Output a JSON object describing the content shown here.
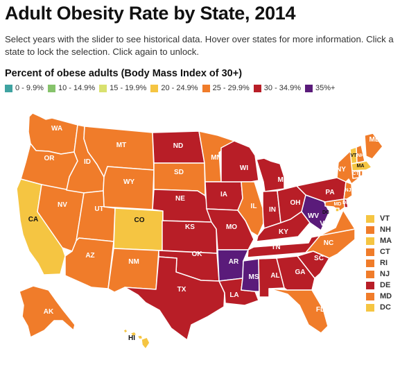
{
  "title": "Adult Obesity Rate by State, 2014",
  "subtitle": "Select years with the slider to see historical data. Hover over states for more information. Click a state to lock the selection. Click again to unlock.",
  "legend": {
    "heading": "Percent of obese adults (Body Mass Index of 30+)",
    "items": [
      {
        "label": "0 - 9.9%",
        "color": "#3fa3a1"
      },
      {
        "label": "10 - 14.9%",
        "color": "#86c36b"
      },
      {
        "label": "15 - 19.9%",
        "color": "#d9e16f"
      },
      {
        "label": "20 - 24.9%",
        "color": "#f5c542"
      },
      {
        "label": "25 - 29.9%",
        "color": "#f07c2a"
      },
      {
        "label": "30 - 34.9%",
        "color": "#b81e27"
      },
      {
        "label": "35%+",
        "color": "#5a1b7a"
      }
    ]
  },
  "map": {
    "states": [
      {
        "abbr": "WA",
        "range": "25 - 29.9%"
      },
      {
        "abbr": "OR",
        "range": "25 - 29.9%"
      },
      {
        "abbr": "CA",
        "range": "20 - 24.9%"
      },
      {
        "abbr": "NV",
        "range": "25 - 29.9%"
      },
      {
        "abbr": "ID",
        "range": "25 - 29.9%"
      },
      {
        "abbr": "MT",
        "range": "25 - 29.9%"
      },
      {
        "abbr": "WY",
        "range": "25 - 29.9%"
      },
      {
        "abbr": "UT",
        "range": "25 - 29.9%"
      },
      {
        "abbr": "AZ",
        "range": "25 - 29.9%"
      },
      {
        "abbr": "CO",
        "range": "20 - 24.9%"
      },
      {
        "abbr": "NM",
        "range": "25 - 29.9%"
      },
      {
        "abbr": "ND",
        "range": "30 - 34.9%"
      },
      {
        "abbr": "SD",
        "range": "25 - 29.9%"
      },
      {
        "abbr": "NE",
        "range": "30 - 34.9%"
      },
      {
        "abbr": "KS",
        "range": "30 - 34.9%"
      },
      {
        "abbr": "OK",
        "range": "30 - 34.9%"
      },
      {
        "abbr": "TX",
        "range": "30 - 34.9%"
      },
      {
        "abbr": "MN",
        "range": "25 - 29.9%"
      },
      {
        "abbr": "IA",
        "range": "30 - 34.9%"
      },
      {
        "abbr": "MO",
        "range": "30 - 34.9%"
      },
      {
        "abbr": "AR",
        "range": "35%+"
      },
      {
        "abbr": "LA",
        "range": "30 - 34.9%"
      },
      {
        "abbr": "WI",
        "range": "30 - 34.9%"
      },
      {
        "abbr": "IL",
        "range": "25 - 29.9%"
      },
      {
        "abbr": "MI",
        "range": "30 - 34.9%"
      },
      {
        "abbr": "IN",
        "range": "30 - 34.9%"
      },
      {
        "abbr": "OH",
        "range": "30 - 34.9%"
      },
      {
        "abbr": "KY",
        "range": "30 - 34.9%"
      },
      {
        "abbr": "TN",
        "range": "30 - 34.9%"
      },
      {
        "abbr": "MS",
        "range": "35%+"
      },
      {
        "abbr": "AL",
        "range": "30 - 34.9%"
      },
      {
        "abbr": "GA",
        "range": "30 - 34.9%"
      },
      {
        "abbr": "FL",
        "range": "25 - 29.9%"
      },
      {
        "abbr": "SC",
        "range": "30 - 34.9%"
      },
      {
        "abbr": "NC",
        "range": "25 - 29.9%"
      },
      {
        "abbr": "VA",
        "range": "25 - 29.9%"
      },
      {
        "abbr": "WV",
        "range": "35%+"
      },
      {
        "abbr": "PA",
        "range": "30 - 34.9%"
      },
      {
        "abbr": "NY",
        "range": "25 - 29.9%"
      },
      {
        "abbr": "ME",
        "range": "25 - 29.9%"
      },
      {
        "abbr": "AK",
        "range": "25 - 29.9%"
      },
      {
        "abbr": "HI",
        "range": "20 - 24.9%"
      },
      {
        "abbr": "VT",
        "range": "20 - 24.9%"
      },
      {
        "abbr": "NH",
        "range": "25 - 29.9%"
      },
      {
        "abbr": "MA",
        "range": "20 - 24.9%"
      },
      {
        "abbr": "CT",
        "range": "25 - 29.9%"
      },
      {
        "abbr": "RI",
        "range": "25 - 29.9%"
      },
      {
        "abbr": "NJ",
        "range": "25 - 29.9%"
      },
      {
        "abbr": "DE",
        "range": "30 - 34.9%"
      },
      {
        "abbr": "MD",
        "range": "25 - 29.9%"
      },
      {
        "abbr": "DC",
        "range": "20 - 24.9%"
      }
    ]
  },
  "side_legend": [
    {
      "abbr": "VT",
      "range": "20 - 24.9%"
    },
    {
      "abbr": "NH",
      "range": "25 - 29.9%"
    },
    {
      "abbr": "MA",
      "range": "20 - 24.9%"
    },
    {
      "abbr": "CT",
      "range": "25 - 29.9%"
    },
    {
      "abbr": "RI",
      "range": "25 - 29.9%"
    },
    {
      "abbr": "NJ",
      "range": "25 - 29.9%"
    },
    {
      "abbr": "DE",
      "range": "30 - 34.9%"
    },
    {
      "abbr": "MD",
      "range": "25 - 29.9%"
    },
    {
      "abbr": "DC",
      "range": "20 - 24.9%"
    }
  ]
}
